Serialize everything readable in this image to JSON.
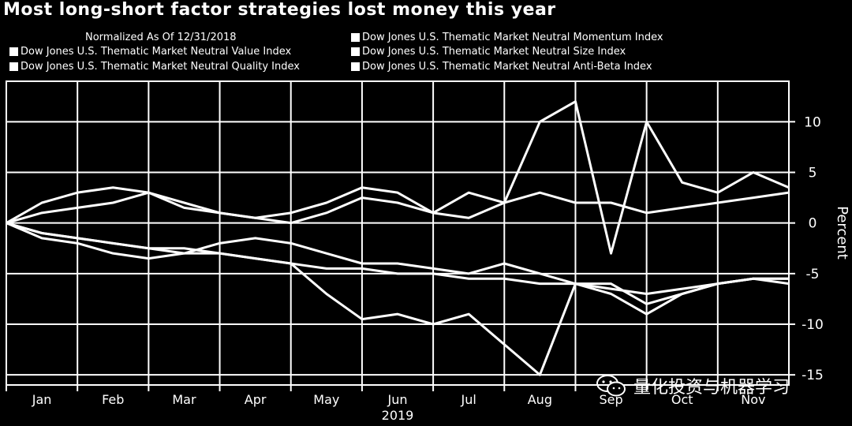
{
  "chart_data": {
    "type": "line",
    "title": "Most long-short factor strategies lost money this year",
    "subtitle": "Normalized As Of 12/31/2018",
    "ylabel": "Percent",
    "year_label": "2019",
    "ylim": [
      -16,
      14
    ],
    "y_ticks": [
      10,
      5,
      0,
      -5,
      -10,
      -15
    ],
    "grid": true,
    "legend_position": "top",
    "months": [
      "Jan",
      "Feb",
      "Mar",
      "Apr",
      "May",
      "Jun",
      "Jul",
      "Aug",
      "Sep",
      "Oct",
      "Nov"
    ],
    "x": [
      0,
      0.5,
      1,
      1.5,
      2,
      2.5,
      3,
      3.5,
      4,
      4.5,
      5,
      5.5,
      6,
      6.5,
      7,
      7.5,
      8,
      8.5,
      9,
      9.5,
      10,
      10.5,
      11
    ],
    "series": [
      {
        "name": "Dow Jones U.S. Thematic Market Neutral Value Index",
        "values": [
          0,
          1,
          1.5,
          2,
          3,
          1.5,
          1,
          0.5,
          0,
          1,
          2.5,
          2,
          1,
          0.5,
          2,
          3,
          2,
          2,
          1,
          1.5,
          2,
          2.5,
          3
        ]
      },
      {
        "name": "Dow Jones U.S. Thematic Market Neutral Quality Index",
        "values": [
          0,
          2,
          3,
          3.5,
          3,
          2,
          1,
          0.5,
          1,
          2,
          3.5,
          3,
          1,
          3,
          2,
          10,
          12,
          -3,
          10,
          4,
          3,
          5,
          3.5
        ]
      },
      {
        "name": "Dow Jones U.S. Thematic Market Neutral Momentum Index",
        "values": [
          0,
          -1,
          -1.5,
          -2,
          -2.5,
          -2.5,
          -3,
          -3.5,
          -4,
          -7,
          -9.5,
          -9,
          -10,
          -9,
          -12,
          -15,
          -6,
          -6,
          -8,
          -7,
          -6,
          -5.5,
          -6
        ]
      },
      {
        "name": "Dow Jones U.S. Thematic Market Neutral Size Index",
        "values": [
          0,
          -1.5,
          -2,
          -3,
          -3.5,
          -3,
          -2,
          -1.5,
          -2,
          -3,
          -4,
          -4,
          -4.5,
          -5,
          -4,
          -5,
          -6,
          -7,
          -9,
          -7,
          -6,
          -5.5,
          -5.5
        ]
      },
      {
        "name": "Dow Jones U.S. Thematic Market Neutral Anti-Beta Index",
        "values": [
          0,
          -1,
          -1.5,
          -2,
          -2.5,
          -3,
          -3,
          -3.5,
          -4,
          -4.5,
          -4.5,
          -5,
          -5,
          -5.5,
          -5.5,
          -6,
          -6,
          -6.5,
          -7,
          -6.5,
          -6,
          -5.5,
          -5.5
        ]
      }
    ]
  },
  "watermark": {
    "text": "量化投资与机器学习",
    "icon": "wechat-icon"
  }
}
